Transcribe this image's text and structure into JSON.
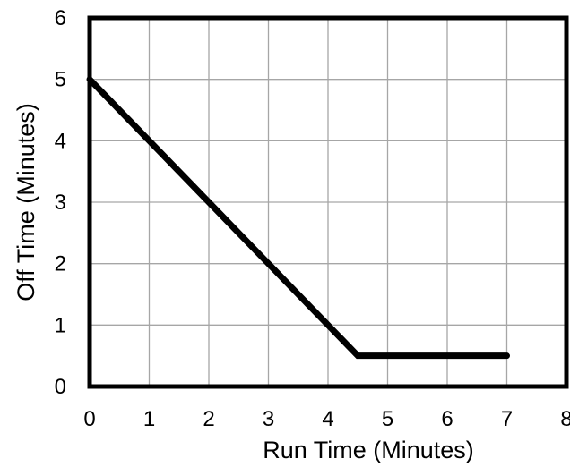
{
  "chart_data": {
    "type": "line",
    "title": "",
    "xlabel": "Run Time (Minutes)",
    "ylabel": "Off Time (Minutes)",
    "xlim": [
      0,
      8
    ],
    "ylim": [
      0,
      6
    ],
    "xticks": [
      "0",
      "1",
      "2",
      "3",
      "4",
      "5",
      "6",
      "7",
      "8"
    ],
    "yticks": [
      "0",
      "1",
      "2",
      "3",
      "4",
      "5",
      "6"
    ],
    "grid": true,
    "legend": "none",
    "series": [
      {
        "x": [
          0,
          4.5,
          7
        ],
        "y": [
          5,
          0.5,
          0.5
        ],
        "color": "#000000"
      }
    ],
    "colors": {
      "line": "#000000",
      "grid": "#a6a6a6",
      "frame": "#000000"
    }
  }
}
